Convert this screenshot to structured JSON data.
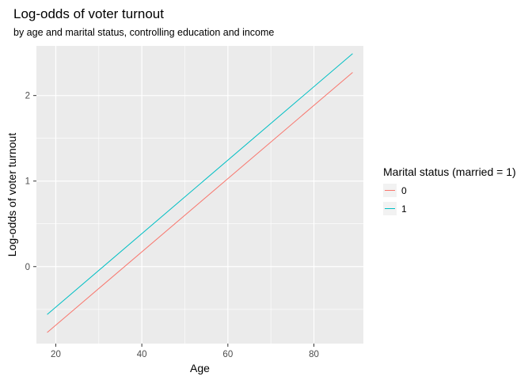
{
  "chart_data": {
    "type": "line",
    "title": "Log-odds of voter turnout",
    "subtitle": "by age and marital status, controlling education and income",
    "xlabel": "Age",
    "ylabel": "Log-odds of voter turnout",
    "xlim": [
      15.5,
      91.5
    ],
    "ylim": [
      -0.9,
      2.58
    ],
    "x_ticks": [
      20,
      40,
      60,
      80
    ],
    "x_minor_ticks": [
      30,
      50,
      70
    ],
    "y_ticks": [
      0,
      1,
      2
    ],
    "y_minor_ticks": [
      -0.5,
      0.5,
      1.5
    ],
    "grid": true,
    "background_color": "#ebebeb",
    "grid_color": "#ffffff",
    "legend": {
      "title": "Marital status (married = 1)",
      "position": "right"
    },
    "series": [
      {
        "name": "0",
        "color": "#f8766d",
        "x": [
          18,
          89
        ],
        "y": [
          -0.77,
          2.27
        ]
      },
      {
        "name": "1",
        "color": "#00bfc4",
        "x": [
          18,
          89
        ],
        "y": [
          -0.56,
          2.49
        ]
      }
    ]
  }
}
